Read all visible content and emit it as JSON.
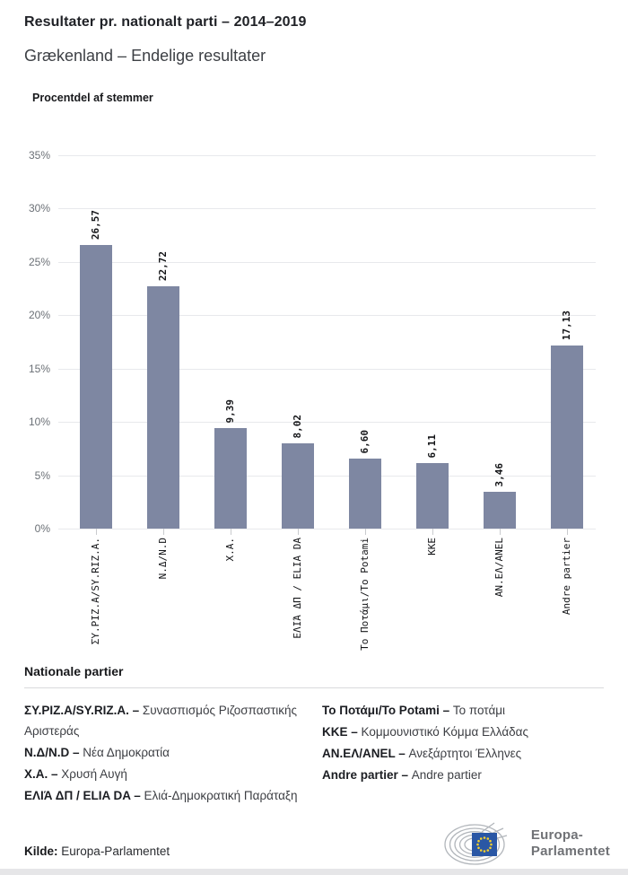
{
  "header": {
    "title": "Resultater pr. nationalt parti – 2014–2019",
    "subtitle": "Grækenland – Endelige resultater"
  },
  "chart_data": {
    "type": "bar",
    "title": "Procentdel af stemmer",
    "categories": [
      "ΣΥ.ΡΙΖ.Α/SY.RIZ.A.",
      "Ν.Δ/N.D",
      "Χ.Α.",
      "ΕΛΙΆ ΔΠ / ELIA DA",
      "Το Ποτάμι/To Potami",
      "ΚΚΕ",
      "ΑΝ.ΕΛ/ANEL",
      "Andre partier"
    ],
    "values": [
      26.57,
      22.72,
      9.39,
      8.02,
      6.6,
      6.11,
      3.46,
      17.13
    ],
    "value_labels": [
      "26,57",
      "22,72",
      "9,39",
      "8,02",
      "6,60",
      "6,11",
      "3,46",
      "17,13"
    ],
    "xlabel": "",
    "ylabel": "Procentdel af stemmer",
    "ylim": [
      0,
      35
    ],
    "yticks": [
      {
        "v": 0,
        "label": "0%"
      },
      {
        "v": 5,
        "label": "5%"
      },
      {
        "v": 10,
        "label": "10%"
      },
      {
        "v": 15,
        "label": "15%"
      },
      {
        "v": 20,
        "label": "20%"
      },
      {
        "v": 25,
        "label": "25%"
      },
      {
        "v": 30,
        "label": "30%"
      },
      {
        "v": 35,
        "label": "35%"
      }
    ],
    "grid": true,
    "legend_position": "none",
    "bar_color": "#7e87a2"
  },
  "legend": {
    "heading": "Nationale partier",
    "columns": [
      [
        {
          "name": "ΣΥ.ΡΙΖ.Α/SY.RIZ.A. –",
          "desc": "Συνασπισμός Ριζοσπαστικής Αριστεράς"
        },
        {
          "name": "Ν.Δ/N.D –",
          "desc": "Νέα Δημοκρατία"
        },
        {
          "name": "Χ.Α. –",
          "desc": "Χρυσή Αυγή"
        },
        {
          "name": "ΕΛΙΆ ΔΠ / ELIA DA –",
          "desc": "Ελιά-Δημοκρατική Παράταξη"
        }
      ],
      [
        {
          "name": "Το Ποτάμι/To Potami –",
          "desc": "Το ποτάμι"
        },
        {
          "name": "ΚΚΕ –",
          "desc": "Κομμουνιστικό Κόμμα Ελλάδας"
        },
        {
          "name": "ΑΝ.ΕΛ/ANEL –",
          "desc": "Ανεξάρτητοι Έλληνες"
        },
        {
          "name": "Andre partier –",
          "desc": "Andre partier"
        }
      ]
    ]
  },
  "footer": {
    "source_label": "Kilde:",
    "source_value": "Europa-Parlamentet",
    "logo_line1": "Europa-",
    "logo_line2": "Parlamentet",
    "logo_colors": {
      "flag_blue": "#2a57a5",
      "star_yellow": "#f8d12a",
      "arc_gray": "#b2b6bb",
      "text_gray": "#707276"
    }
  }
}
